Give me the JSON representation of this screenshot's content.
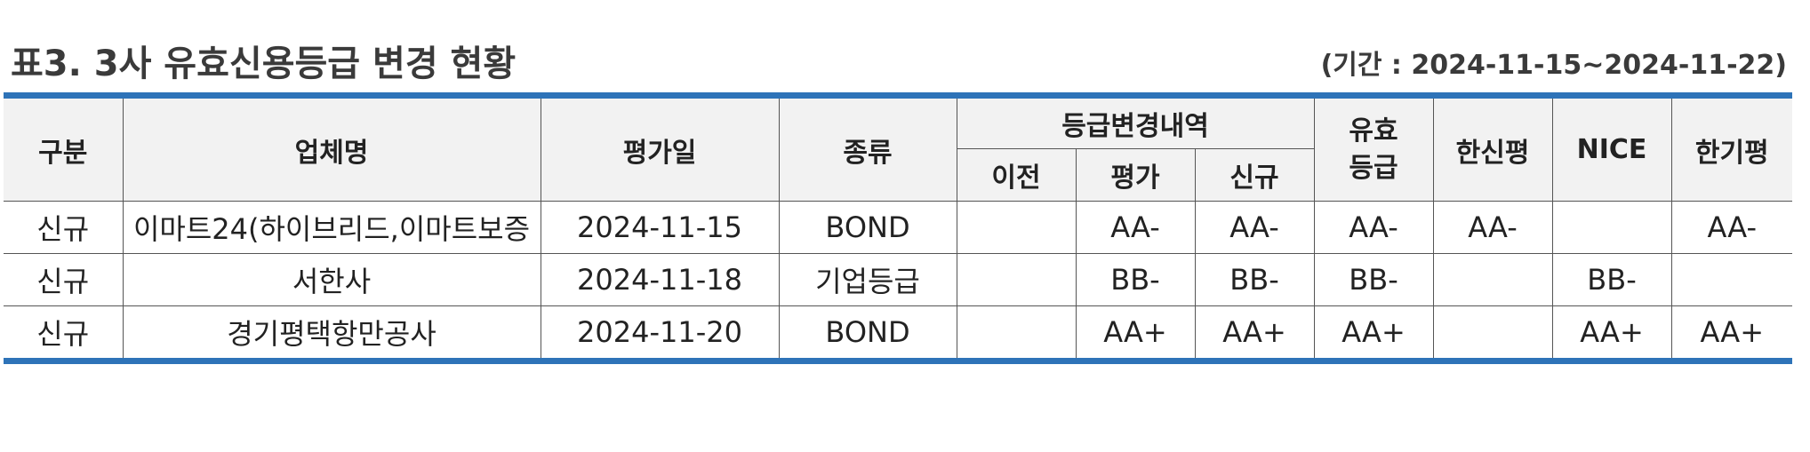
{
  "title": "표3. 3사 유효신용등급 변경 현황",
  "period": "(기간 : 2024-11-15~2024-11-22)",
  "headers": {
    "category": "구분",
    "company": "업체명",
    "eval_date": "평가일",
    "type": "종류",
    "change_history": "등급변경내역",
    "prev": "이전",
    "eval": "평가",
    "new": "신규",
    "valid_grade": "유효\n등급",
    "hanshin": "한신평",
    "nice": "NICE",
    "hangi": "한기평"
  },
  "rows": [
    {
      "category": "신규",
      "company": "이마트24(하이브리드,이마트보증",
      "eval_date": "2024-11-15",
      "type": "BOND",
      "prev": "",
      "eval": "AA-",
      "new": "AA-",
      "valid": "AA-",
      "hanshin": "AA-",
      "nice": "",
      "hangi": "AA-"
    },
    {
      "category": "신규",
      "company": "서한사",
      "eval_date": "2024-11-18",
      "type": "기업등급",
      "prev": "",
      "eval": "BB-",
      "new": "BB-",
      "valid": "BB-",
      "hanshin": "",
      "nice": "BB-",
      "hangi": ""
    },
    {
      "category": "신규",
      "company": "경기평택항만공사",
      "eval_date": "2024-11-20",
      "type": "BOND",
      "prev": "",
      "eval": "AA+",
      "new": "AA+",
      "valid": "AA+",
      "hanshin": "",
      "nice": "AA+",
      "hangi": "AA+"
    }
  ],
  "colors": {
    "rule": "#2e73b8",
    "header_bg": "#f2f2f2",
    "title_text": "#3a3a3a"
  }
}
